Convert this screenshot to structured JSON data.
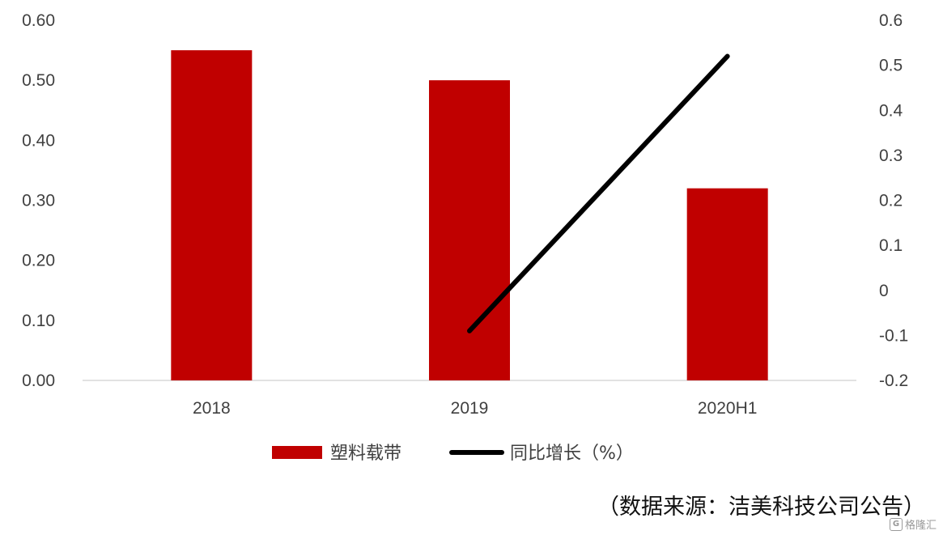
{
  "chart_data": {
    "type": "bar",
    "categories": [
      "2018",
      "2019",
      "2020H1"
    ],
    "series": [
      {
        "name": "塑料载带",
        "kind": "bar",
        "axis": "left",
        "color": "#C00000",
        "values": [
          0.55,
          0.5,
          0.32
        ]
      },
      {
        "name": "同比增长（%）",
        "kind": "line",
        "axis": "right",
        "color": "#000000",
        "values": [
          null,
          -0.09,
          0.52
        ]
      }
    ],
    "y_left": {
      "ylim": [
        0.0,
        0.6
      ],
      "ticks": [
        "0.00",
        "0.10",
        "0.20",
        "0.30",
        "0.40",
        "0.50",
        "0.60"
      ]
    },
    "y_right": {
      "ylim": [
        -0.2,
        0.6
      ],
      "ticks": [
        "-0.2",
        "-0.1",
        "0",
        "0.1",
        "0.2",
        "0.3",
        "0.4",
        "0.5",
        "0.6"
      ]
    },
    "grid": false,
    "legend_position": "bottom",
    "source_note": "（数据来源：洁美科技公司公告）"
  },
  "watermark": {
    "logo_text": "G",
    "text": "格隆汇"
  }
}
